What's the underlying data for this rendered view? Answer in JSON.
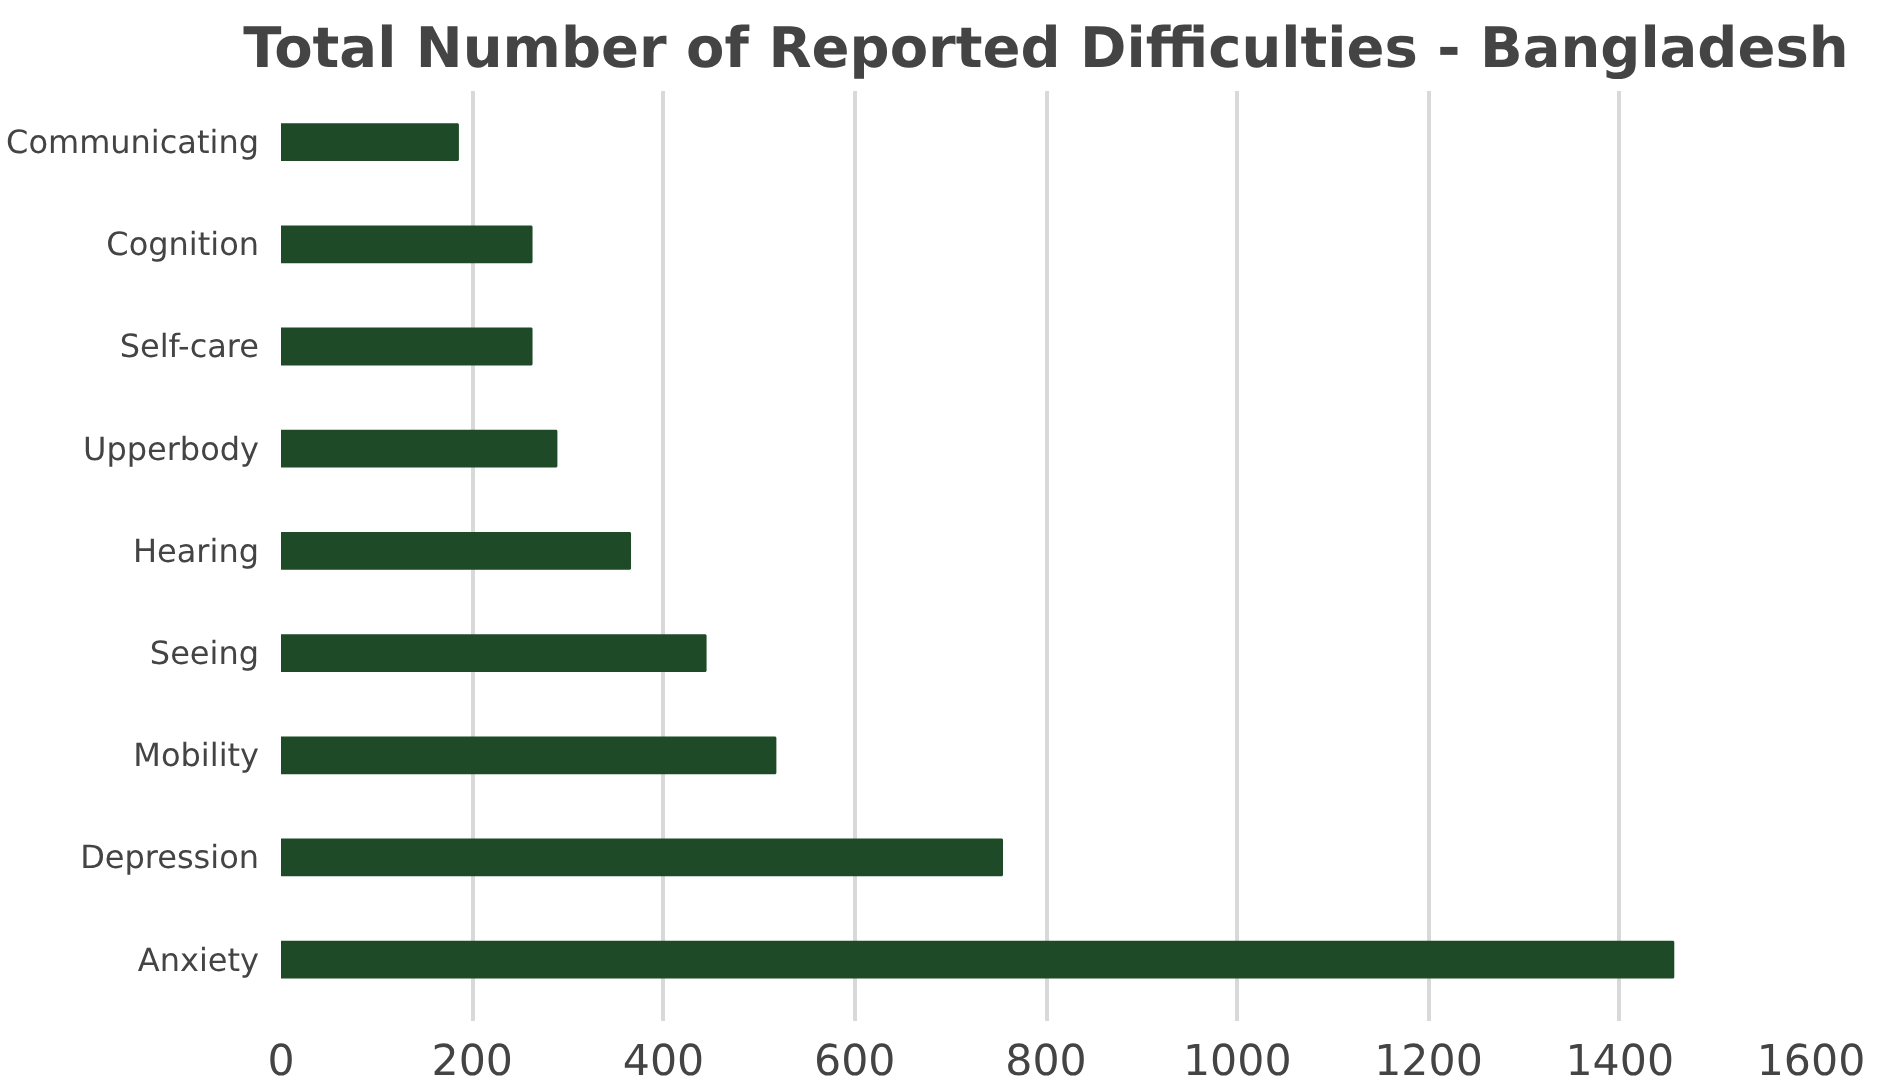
{
  "chart_data": {
    "type": "bar",
    "orientation": "horizontal",
    "title": "Total Number of Reported Difficulties - Bangladesh",
    "categories": [
      "Communicating",
      "Cognition",
      "Self-care",
      "Upperbody",
      "Hearing",
      "Seeing",
      "Mobility",
      "Depression",
      "Anxiety"
    ],
    "values": [
      185,
      262,
      262,
      288,
      365,
      444,
      517,
      754,
      1456
    ],
    "color": "#1e4a27",
    "xlim": [
      0,
      1600
    ],
    "xticks": [
      0,
      200,
      400,
      600,
      800,
      1000,
      1200,
      1400,
      1600
    ],
    "grid": "x"
  }
}
